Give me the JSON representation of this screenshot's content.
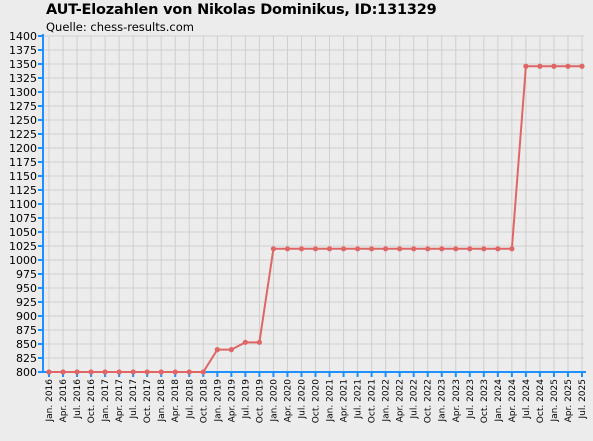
{
  "chart_data": {
    "type": "line",
    "title": "AUT-Elozahlen von Nikolas Dominikus, ID:131329",
    "subtitle": "Quelle: chess-results.com",
    "xlabel": "",
    "ylabel": "",
    "ylim": [
      800,
      1400
    ],
    "ytick_step": 25,
    "grid": true,
    "line_color": "#e06666",
    "axis_color": "#1e90ff",
    "categories": [
      "Jan. 2016",
      "Apr. 2016",
      "Jul. 2016",
      "Oct. 2016",
      "Jan. 2017",
      "Apr. 2017",
      "Jul. 2017",
      "Oct. 2017",
      "Jan. 2018",
      "Apr. 2018",
      "Jul. 2018",
      "Oct. 2018",
      "Jan. 2019",
      "Apr. 2019",
      "Jul. 2019",
      "Oct. 2019",
      "Jan. 2020",
      "Apr. 2020",
      "Jul. 2020",
      "Oct. 2020",
      "Jan. 2021",
      "Apr. 2021",
      "Jul. 2021",
      "Oct. 2021",
      "Jan. 2022",
      "Apr. 2022",
      "Jul. 2022",
      "Oct. 2022",
      "Jan. 2023",
      "Apr. 2023",
      "Jul. 2023",
      "Oct. 2023",
      "Jan. 2024",
      "Apr. 2024",
      "Jul. 2024",
      "Oct. 2024",
      "Jan. 2025",
      "Apr. 2025",
      "Jul. 2025"
    ],
    "series": [
      {
        "values": [
          800,
          800,
          800,
          800,
          800,
          800,
          800,
          800,
          800,
          800,
          800,
          800,
          840,
          840,
          853,
          853,
          1020,
          1020,
          1020,
          1020,
          1020,
          1020,
          1020,
          1020,
          1020,
          1020,
          1020,
          1020,
          1020,
          1020,
          1020,
          1020,
          1020,
          1020,
          1346,
          1346,
          1346,
          1346,
          1346
        ]
      }
    ]
  }
}
